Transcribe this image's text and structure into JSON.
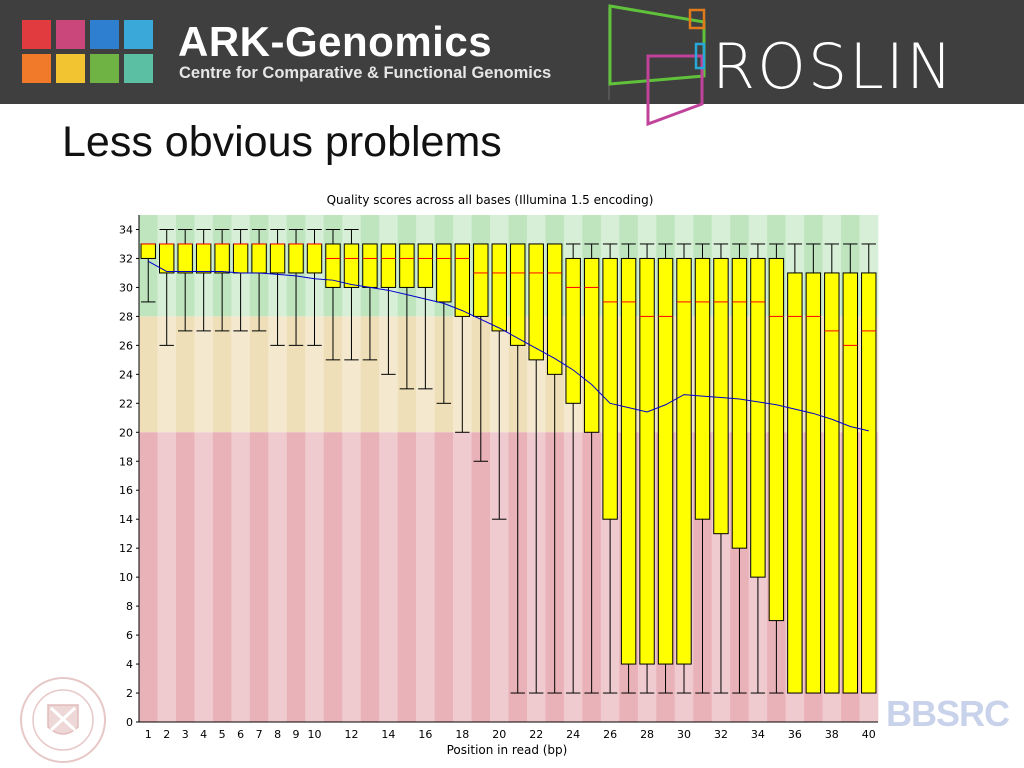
{
  "header": {
    "brand_title": "ARK-Genomics",
    "brand_subtitle": "Centre for Comparative & Functional Genomics",
    "partner_logo_text": "ROSLIN",
    "tile_colors": [
      "#e23b3f",
      "#c9477a",
      "#2f7fd0",
      "#3aa8d8",
      "#f07a2a",
      "#f3c432",
      "#6fb344",
      "#5bbfa4"
    ]
  },
  "slide": {
    "title": "Less obvious problems"
  },
  "footer": {
    "left_logo": "The University of Edinburgh",
    "right_logo": "BBSRC"
  },
  "chart_data": {
    "type": "boxplot",
    "title": "Quality scores across all bases (Illumina 1.5 encoding)",
    "xlabel": "Position in read (bp)",
    "ylabel": "",
    "ylim": [
      0,
      35
    ],
    "yticks": [
      0,
      2,
      4,
      6,
      8,
      10,
      12,
      14,
      16,
      18,
      20,
      22,
      24,
      26,
      28,
      30,
      32,
      34
    ],
    "xtick_labels": [
      "1",
      "2",
      "3",
      "4",
      "5",
      "6",
      "7",
      "8",
      "9",
      "10",
      "12",
      "14",
      "16",
      "18",
      "20",
      "22",
      "24",
      "26",
      "28",
      "30",
      "32",
      "34",
      "36",
      "38",
      "40"
    ],
    "zones": [
      {
        "from": 28,
        "to": 35,
        "color": "green"
      },
      {
        "from": 20,
        "to": 28,
        "color": "orange"
      },
      {
        "from": 0,
        "to": 20,
        "color": "red"
      }
    ],
    "positions": [
      1,
      2,
      3,
      4,
      5,
      6,
      7,
      8,
      9,
      10,
      11,
      12,
      13,
      14,
      15,
      16,
      17,
      18,
      19,
      20,
      21,
      22,
      23,
      24,
      25,
      26,
      27,
      28,
      29,
      30,
      31,
      32,
      33,
      34,
      35,
      36,
      37,
      38,
      39,
      40
    ],
    "q1": [
      32,
      31,
      31,
      31,
      31,
      31,
      31,
      31,
      31,
      31,
      30,
      30,
      30,
      30,
      30,
      30,
      29,
      28,
      28,
      27,
      26,
      25,
      24,
      22,
      20,
      14,
      4,
      4,
      4,
      4,
      14,
      13,
      12,
      10,
      7,
      2,
      2,
      2,
      2,
      2
    ],
    "q3": [
      33,
      33,
      33,
      33,
      33,
      33,
      33,
      33,
      33,
      33,
      33,
      33,
      33,
      33,
      33,
      33,
      33,
      33,
      33,
      33,
      33,
      33,
      33,
      32,
      32,
      32,
      32,
      32,
      32,
      32,
      32,
      32,
      32,
      32,
      32,
      31,
      31,
      31,
      31,
      31
    ],
    "median": [
      33,
      33,
      33,
      33,
      33,
      33,
      33,
      33,
      33,
      33,
      32,
      32,
      32,
      32,
      32,
      32,
      32,
      32,
      31,
      31,
      31,
      31,
      31,
      30,
      30,
      29,
      29,
      28,
      28,
      29,
      29,
      29,
      29,
      29,
      28,
      28,
      28,
      27,
      26,
      27
    ],
    "whisker_low": [
      29,
      26,
      27,
      27,
      27,
      27,
      27,
      26,
      26,
      26,
      25,
      25,
      25,
      24,
      23,
      23,
      22,
      20,
      18,
      14,
      2,
      2,
      2,
      2,
      2,
      2,
      2,
      2,
      2,
      2,
      2,
      2,
      2,
      2,
      2,
      2,
      2,
      2,
      2,
      2
    ],
    "whisker_high": [
      33,
      34,
      34,
      34,
      34,
      34,
      34,
      34,
      34,
      34,
      34,
      34,
      33,
      33,
      33,
      33,
      33,
      33,
      33,
      33,
      33,
      33,
      33,
      33,
      33,
      33,
      33,
      33,
      33,
      33,
      33,
      33,
      33,
      33,
      33,
      33,
      33,
      33,
      33,
      33
    ],
    "mean": [
      31.8,
      31.1,
      31.1,
      31.1,
      31.1,
      31.0,
      31.0,
      30.9,
      30.8,
      30.6,
      30.5,
      30.2,
      30.0,
      29.8,
      29.5,
      29.2,
      28.9,
      28.4,
      27.8,
      27.2,
      26.5,
      25.8,
      25.1,
      24.3,
      23.3,
      22.0,
      21.7,
      21.4,
      21.9,
      22.6,
      22.5,
      22.4,
      22.3,
      22.1,
      21.9,
      21.6,
      21.3,
      20.9,
      20.4,
      20.1
    ],
    "colors": {
      "box": "#ffff00",
      "box_edge": "#000000",
      "median": "#ff0000",
      "mean": "#0000cc",
      "green": "#bfe5bf",
      "green_alt": "#d6efd6",
      "orange": "#eedfb8",
      "orange_alt": "#f4e9cf",
      "red": "#e9b2b8",
      "red_alt": "#efcbcf"
    }
  }
}
